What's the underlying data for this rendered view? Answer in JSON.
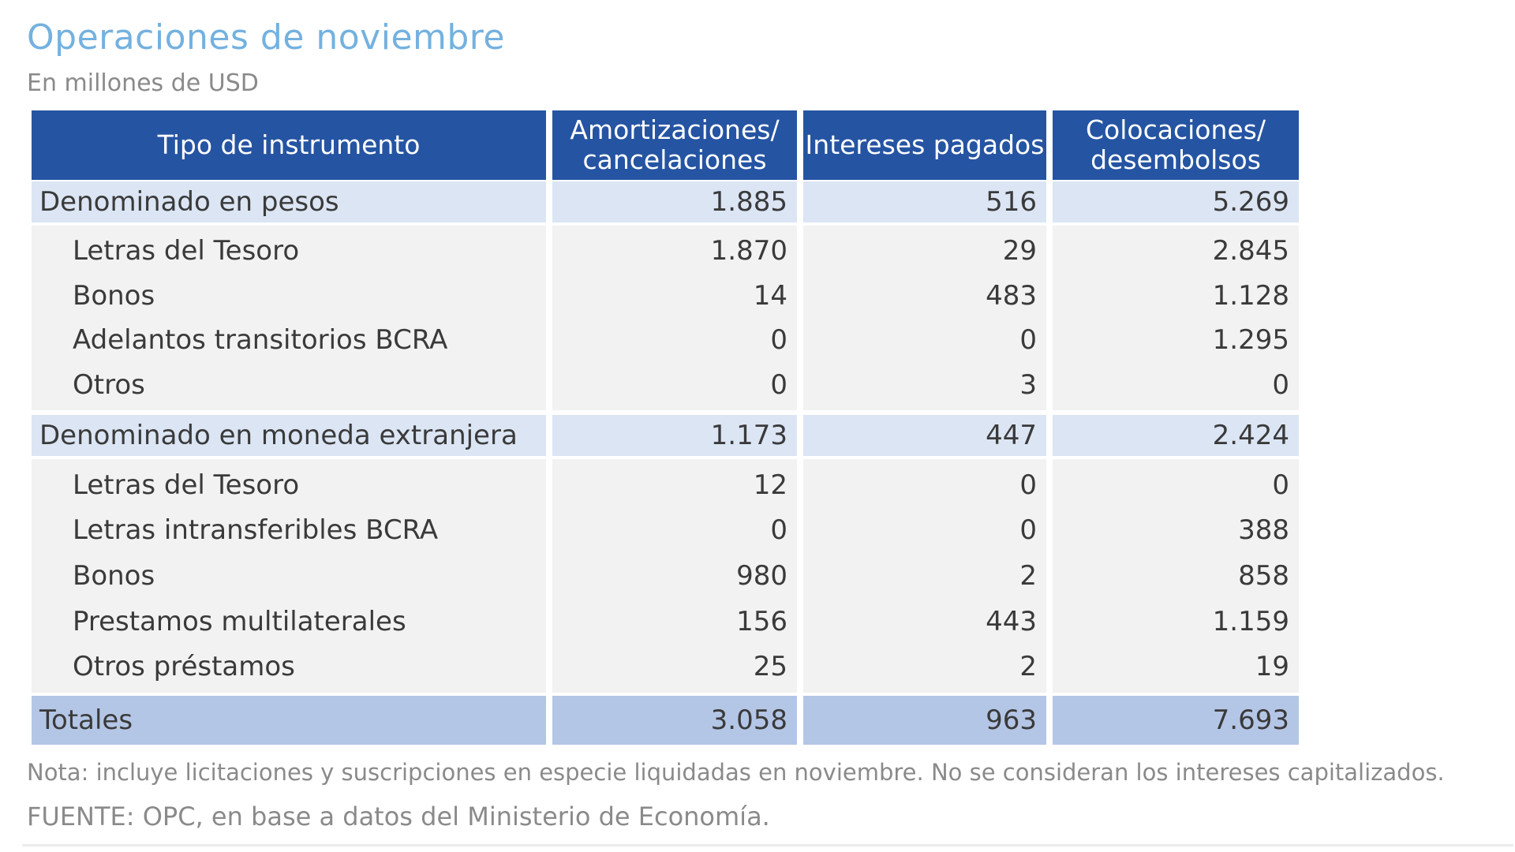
{
  "title": "Operaciones de noviembre",
  "subtitle": "En millones de USD",
  "table": {
    "headers": [
      "Tipo de instrumento",
      "Amortizaciones/ cancelaciones",
      "Intereses pagados",
      "Colocaciones/ desembolsos"
    ],
    "sections": [
      {
        "label": "Denominado en pesos",
        "values": [
          "1.885",
          "516",
          "5.269"
        ],
        "rows": [
          {
            "label": "Letras del Tesoro",
            "values": [
              "1.870",
              "29",
              "2.845"
            ]
          },
          {
            "label": "Bonos",
            "values": [
              "14",
              "483",
              "1.128"
            ]
          },
          {
            "label": "Adelantos transitorios BCRA",
            "values": [
              "0",
              "0",
              "1.295"
            ]
          },
          {
            "label": "Otros",
            "values": [
              "0",
              "3",
              "0"
            ]
          }
        ]
      },
      {
        "label": "Denominado en moneda extranjera",
        "values": [
          "1.173",
          "447",
          "2.424"
        ],
        "rows": [
          {
            "label": "Letras del Tesoro",
            "values": [
              "12",
              "0",
              "0"
            ]
          },
          {
            "label": "Letras intransferibles BCRA",
            "values": [
              "0",
              "0",
              "388"
            ]
          },
          {
            "label": "Bonos",
            "values": [
              "980",
              "2",
              "858"
            ]
          },
          {
            "label": "Prestamos multilaterales",
            "values": [
              "156",
              "443",
              "1.159"
            ]
          },
          {
            "label": "Otros préstamos",
            "values": [
              "25",
              "2",
              "19"
            ]
          }
        ]
      }
    ],
    "totals": {
      "label": "Totales",
      "values": [
        "3.058",
        "963",
        "7.693"
      ]
    }
  },
  "note": "Nota: incluye licitaciones y suscripciones en especie liquidadas en noviembre. No se consideran los intereses capitalizados.",
  "source": "FUENTE: OPC, en base a datos del Ministerio de Economía.",
  "colors": {
    "title": "#74b1df",
    "header_bg": "#2554a2",
    "section_bg": "#dbe5f4",
    "row_bg": "#f2f2f2",
    "totals_bg": "#b4c6e6"
  }
}
